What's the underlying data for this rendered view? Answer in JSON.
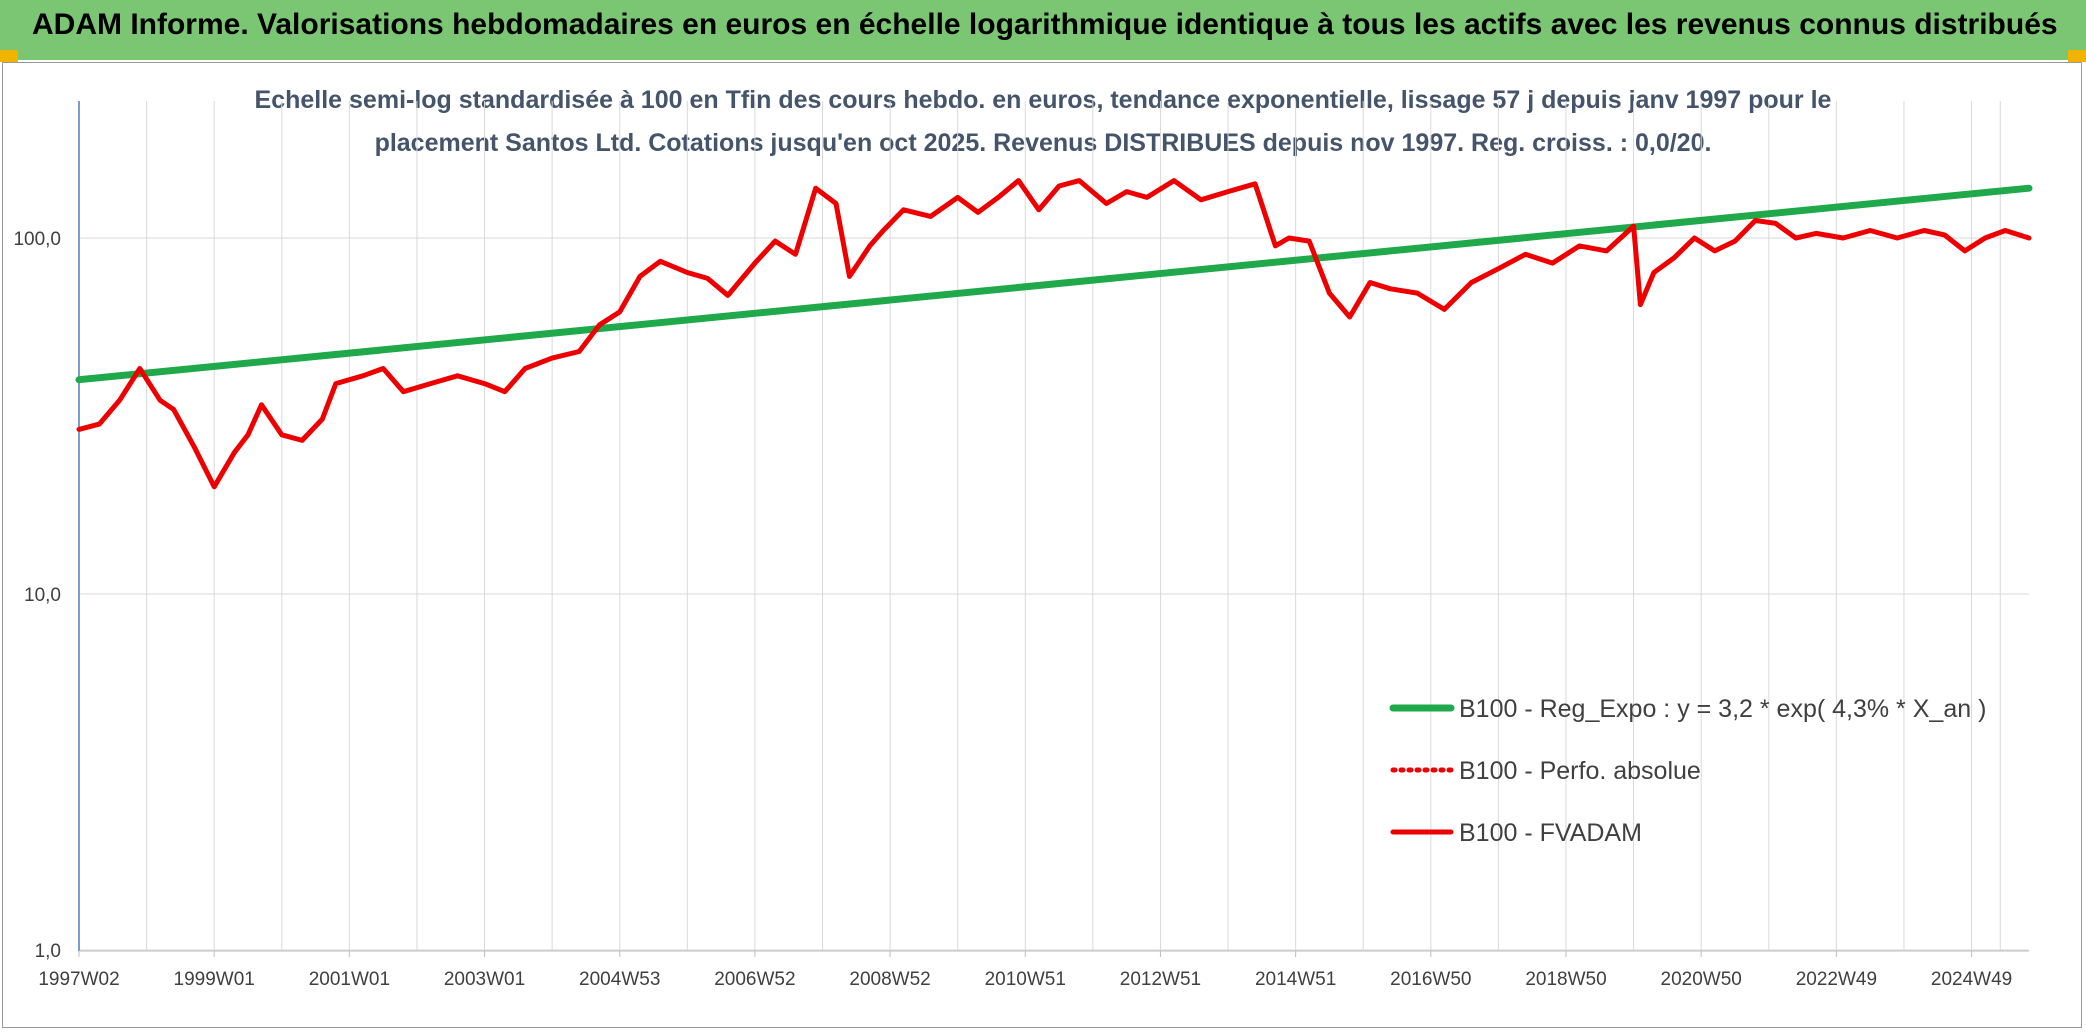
{
  "header": {
    "title": "ADAM Informe. Valorisations hebdomadaires en euros en échelle logarithmique identique à tous les actifs avec les revenus connus distribués"
  },
  "colors": {
    "header_bg": "#7ac673",
    "corner_accent": "#f0b400",
    "trend": "#1fa94b",
    "fvadam": "#ee0000",
    "perfo": "#ee0000",
    "subtitle": "#44546a",
    "grid": "#d9d9d9"
  },
  "chart_data": {
    "type": "line",
    "subtitle": [
      "Echelle semi-log standardisée à 100 en Tfin des cours hebdo. en euros, tendance exponentielle, lissage 57 j depuis janv 1997 pour le",
      "placement Santos Ltd. Cotations jusqu'en oct 2025. Revenus DISTRIBUES depuis nov 1997. Reg. croiss. : 0,0/20."
    ],
    "y_scale": "log",
    "ylim": [
      1,
      200
    ],
    "xlim": [
      1997.0,
      2025.85
    ],
    "y_ticks": [
      {
        "value": 1,
        "label": "1,0"
      },
      {
        "value": 10,
        "label": "10,0"
      },
      {
        "value": 100,
        "label": "100,0"
      }
    ],
    "x_ticks": [
      {
        "value": 1997.0,
        "label": "1997W02"
      },
      {
        "value": 1999.0,
        "label": "1999W01"
      },
      {
        "value": 2001.0,
        "label": "2001W01"
      },
      {
        "value": 2003.0,
        "label": "2003W01"
      },
      {
        "value": 2005.0,
        "label": "2004W53"
      },
      {
        "value": 2007.0,
        "label": "2006W52"
      },
      {
        "value": 2009.0,
        "label": "2008W52"
      },
      {
        "value": 2011.0,
        "label": "2010W51"
      },
      {
        "value": 2013.0,
        "label": "2012W51"
      },
      {
        "value": 2015.0,
        "label": "2014W51"
      },
      {
        "value": 2017.0,
        "label": "2016W50"
      },
      {
        "value": 2019.0,
        "label": "2018W50"
      },
      {
        "value": 2021.0,
        "label": "2020W50"
      },
      {
        "value": 2023.0,
        "label": "2022W49"
      },
      {
        "value": 2025.0,
        "label": "2024W49"
      }
    ],
    "grid": true,
    "legend_position": "bottom-right",
    "series": [
      {
        "name": "B100 - Reg_Expo : y = 3,2 * exp( 4,3% *  X_an )",
        "style": "solid-thick",
        "color": "#1fa94b",
        "x": [
          1997.0,
          2025.85
        ],
        "y": [
          40,
          138
        ]
      },
      {
        "name": "B100 - Perfo. absolue",
        "style": "dotted",
        "color": "#ee0000",
        "x": [],
        "y": []
      },
      {
        "name": "B100 - FVADAM",
        "style": "solid",
        "color": "#ee0000",
        "x": [
          1997.0,
          1997.3,
          1997.6,
          1997.9,
          1998.2,
          1998.4,
          1998.7,
          1999.0,
          1999.3,
          1999.5,
          1999.7,
          2000.0,
          2000.3,
          2000.6,
          2000.8,
          2001.2,
          2001.5,
          2001.8,
          2002.2,
          2002.6,
          2003.0,
          2003.3,
          2003.6,
          2004.0,
          2004.4,
          2004.7,
          2005.0,
          2005.3,
          2005.6,
          2006.0,
          2006.3,
          2006.6,
          2007.0,
          2007.3,
          2007.6,
          2007.9,
          2008.2,
          2008.4,
          2008.7,
          2008.9,
          2009.2,
          2009.6,
          2010.0,
          2010.3,
          2010.6,
          2010.9,
          2011.2,
          2011.5,
          2011.8,
          2012.2,
          2012.5,
          2012.8,
          2013.2,
          2013.6,
          2014.0,
          2014.4,
          2014.7,
          2014.9,
          2015.2,
          2015.5,
          2015.8,
          2016.1,
          2016.4,
          2016.8,
          2017.2,
          2017.6,
          2018.0,
          2018.4,
          2018.8,
          2019.2,
          2019.6,
          2020.0,
          2020.1,
          2020.3,
          2020.6,
          2020.9,
          2021.2,
          2021.5,
          2021.8,
          2022.1,
          2022.4,
          2022.7,
          2023.1,
          2023.5,
          2023.9,
          2024.3,
          2024.6,
          2024.9,
          2025.2,
          2025.5,
          2025.85
        ],
        "y": [
          29,
          30,
          35,
          43,
          35,
          33,
          26,
          20,
          25,
          28,
          34,
          28,
          27,
          31,
          39,
          41,
          43,
          37,
          39,
          41,
          39,
          37,
          43,
          46,
          48,
          57,
          62,
          78,
          86,
          80,
          77,
          69,
          85,
          98,
          90,
          138,
          125,
          78,
          95,
          105,
          120,
          115,
          130,
          118,
          130,
          145,
          120,
          140,
          145,
          125,
          135,
          130,
          145,
          128,
          135,
          142,
          95,
          100,
          98,
          70,
          60,
          75,
          72,
          70,
          63,
          75,
          82,
          90,
          85,
          95,
          92,
          108,
          65,
          80,
          88,
          100,
          92,
          98,
          112,
          110,
          100,
          103,
          100,
          105,
          100,
          105,
          102,
          92,
          100,
          105,
          100
        ]
      }
    ]
  }
}
